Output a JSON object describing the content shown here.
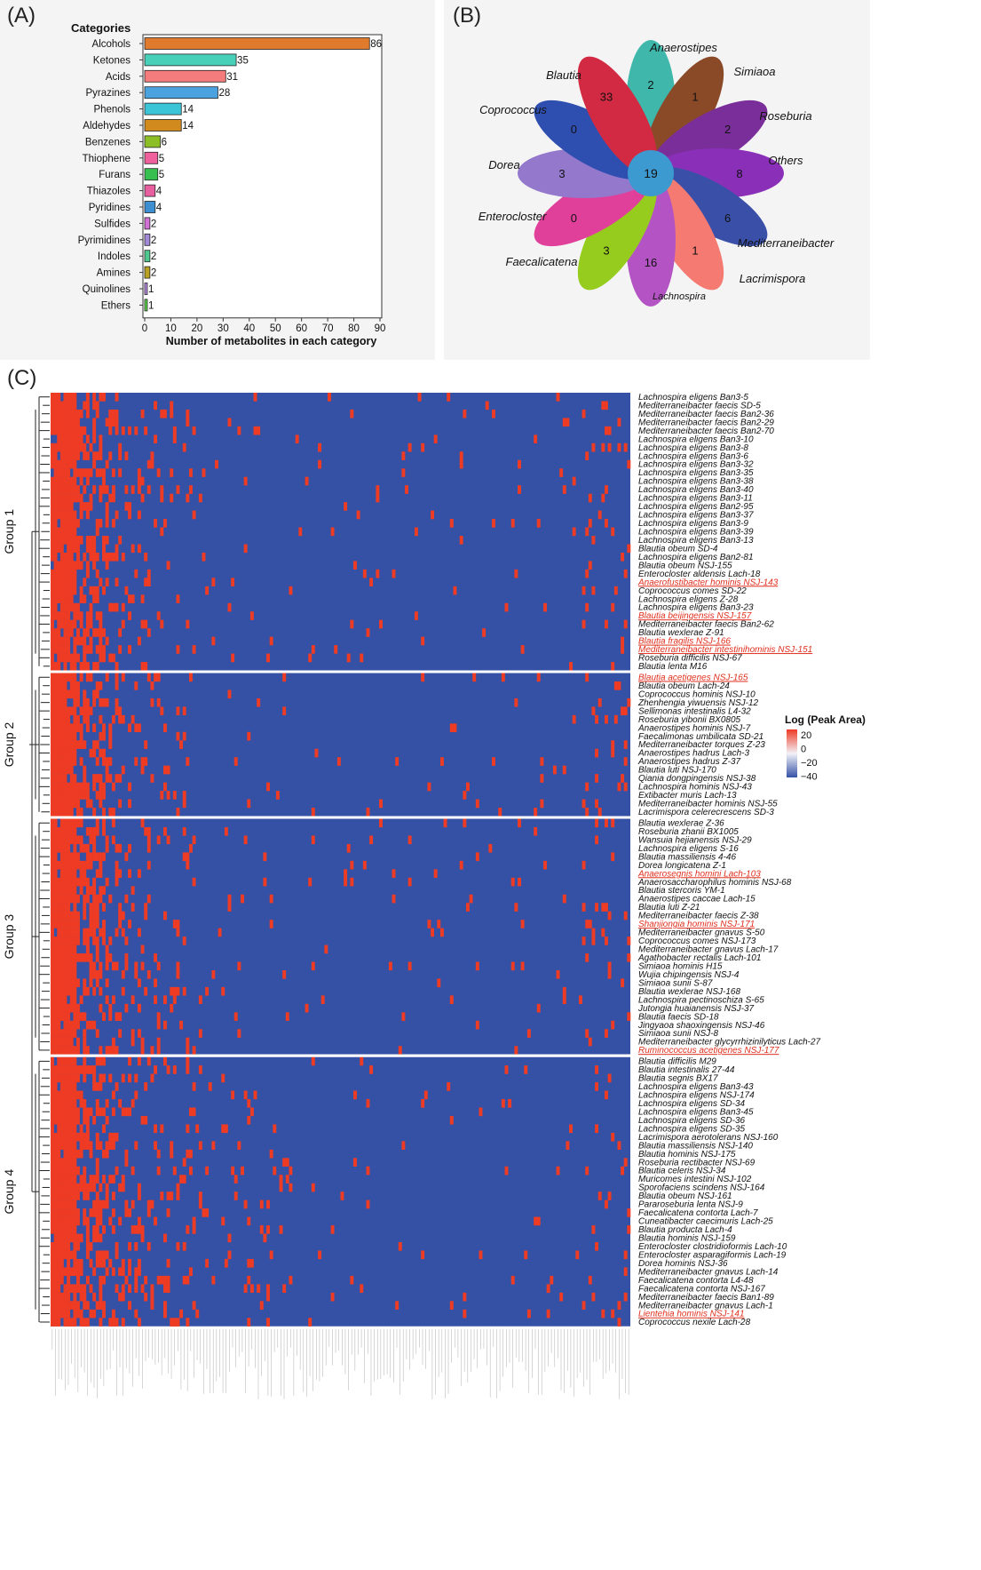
{
  "panel_labels": {
    "a": "(A)",
    "b": "(B)",
    "c": "(C)"
  },
  "chart_data": [
    {
      "type": "bar",
      "orientation": "horizontal",
      "legend_title": "Categories",
      "xlabel": "Number of metabolites in each category",
      "xlim": [
        0,
        90
      ],
      "xticks": [
        0,
        10,
        20,
        30,
        40,
        50,
        60,
        70,
        80,
        90
      ],
      "categories": [
        "Alcohols",
        "Ketones",
        "Acids",
        "Pyrazines",
        "Phenols",
        "Aldehydes",
        "Benzenes",
        "Thiophene",
        "Furans",
        "Thiazoles",
        "Pyridines",
        "Sulfides",
        "Pyrimidines",
        "Indoles",
        "Amines",
        "Quinolines",
        "Ethers"
      ],
      "values": [
        86,
        35,
        31,
        28,
        14,
        14,
        6,
        5,
        5,
        4,
        4,
        2,
        2,
        2,
        2,
        1,
        1
      ],
      "colors": [
        "#e07b2e",
        "#48d1b8",
        "#f47c7c",
        "#4aa3df",
        "#3cc5d6",
        "#d08a1e",
        "#8cbf26",
        "#f0609c",
        "#37c04f",
        "#e85fa0",
        "#3d8fd1",
        "#d271d6",
        "#a38ad9",
        "#4fc98f",
        "#b8a022",
        "#b68ae0",
        "#5bd34a"
      ]
    },
    {
      "type": "flower",
      "center_value": 19,
      "petals": [
        {
          "label": "Anaerostipes",
          "value": 2,
          "color": "#3fb8ab"
        },
        {
          "label": "Simiaoa",
          "value": 1,
          "color": "#8a4a28"
        },
        {
          "label": "Roseburia",
          "value": 2,
          "color": "#7a2e9a"
        },
        {
          "label": "Others",
          "value": 8,
          "color": "#8a30b8"
        },
        {
          "label": "Mediterraneibacter",
          "value": 6,
          "color": "#3a50a8"
        },
        {
          "label": "Lacrimispora",
          "value": 1,
          "color": "#f47a72"
        },
        {
          "label": "Lachnospira",
          "value": 16,
          "color": "#b454c4"
        },
        {
          "label": "Faecalicatena",
          "value": 3,
          "color": "#96cc1e"
        },
        {
          "label": "Enterocloster",
          "value": 0,
          "color": "#e0409a"
        },
        {
          "label": "Dorea",
          "value": 3,
          "color": "#9478cc"
        },
        {
          "label": "Coprococcus",
          "value": 0,
          "color": "#2f4fb0"
        },
        {
          "label": "Blautia",
          "value": 33,
          "color": "#d22a42"
        }
      ],
      "center_color": "#3d9ad1"
    },
    {
      "type": "heatmap",
      "legend_title": "Log (Peak Area)",
      "legend_ticks": [
        "20",
        "0",
        "−20",
        "−40"
      ],
      "colors": {
        "low": "#3451a6",
        "high": "#ee3b24"
      },
      "groups": [
        {
          "name": "Group 1",
          "rows": [
            {
              "label": "Lachnospira eligens Ban3-5",
              "highlight": false
            },
            {
              "label": "Mediterraneibacter faecis SD-5",
              "highlight": false
            },
            {
              "label": "Mediterraneibacter faecis Ban2-36",
              "highlight": false
            },
            {
              "label": "Mediterraneibacter faecis Ban2-29",
              "highlight": false
            },
            {
              "label": "Mediterraneibacter faecis Ban2-70",
              "highlight": false
            },
            {
              "label": "Lachnospira eligens Ban3-10",
              "highlight": false
            },
            {
              "label": "Lachnospira eligens Ban3-8",
              "highlight": false
            },
            {
              "label": "Lachnospira eligens Ban3-6",
              "highlight": false
            },
            {
              "label": "Lachnospira eligens Ban3-32",
              "highlight": false
            },
            {
              "label": "Lachnospira eligens Ban3-35",
              "highlight": false
            },
            {
              "label": "Lachnospira eligens Ban3-38",
              "highlight": false
            },
            {
              "label": "Lachnospira eligens Ban3-40",
              "highlight": false
            },
            {
              "label": "Lachnospira eligens Ban3-11",
              "highlight": false
            },
            {
              "label": "Lachnospira eligens Ban2-95",
              "highlight": false
            },
            {
              "label": "Lachnospira eligens Ban3-37",
              "highlight": false
            },
            {
              "label": "Lachnospira eligens Ban3-9",
              "highlight": false
            },
            {
              "label": "Lachnospira eligens Ban3-39",
              "highlight": false
            },
            {
              "label": "Lachnospira eligens Ban3-13",
              "highlight": false
            },
            {
              "label": "Blautia obeum SD-4",
              "highlight": false
            },
            {
              "label": "Lachnospira eligens Ban2-81",
              "highlight": false
            },
            {
              "label": "Blautia obeum NSJ-155",
              "highlight": false
            },
            {
              "label": "Enterocloster aldensis Lach-18",
              "highlight": false
            },
            {
              "label": "Anaerofustibacter hominis NSJ-143",
              "highlight": true
            },
            {
              "label": "Coprococcus comes SD-22",
              "highlight": false
            },
            {
              "label": "Lachnospira eligens Z-28",
              "highlight": false
            },
            {
              "label": "Lachnospira eligens Ban3-23",
              "highlight": false
            },
            {
              "label": "Blautia beijingensis NSJ-157",
              "highlight": true
            },
            {
              "label": "Mediterraneibacter faecis Ban2-62",
              "highlight": false
            },
            {
              "label": "Blautia wexlerae Z-91",
              "highlight": false
            },
            {
              "label": "Blautia fragilis NSJ-166",
              "highlight": true
            },
            {
              "label": "Mediterraneibacter intestinihominis NSJ-151",
              "highlight": true
            },
            {
              "label": "Roseburia difficilis NSJ-67",
              "highlight": false
            },
            {
              "label": "Blautia lenta M16",
              "highlight": false
            }
          ]
        },
        {
          "name": "Group 2",
          "rows": [
            {
              "label": "Blautia acetigenes NSJ-165",
              "highlight": true
            },
            {
              "label": "Blautia obeum Lach-24",
              "highlight": false
            },
            {
              "label": "Coprococcus hominis NSJ-10",
              "highlight": false
            },
            {
              "label": "Zhenhengia yiwuensis NSJ-12",
              "highlight": false
            },
            {
              "label": "Sellimonas intestinalis L4-32",
              "highlight": false
            },
            {
              "label": "Roseburia yibonii BX0805",
              "highlight": false
            },
            {
              "label": "Anaerostipes hominis NSJ-7",
              "highlight": false
            },
            {
              "label": "Faecalimonas umbilicata SD-21",
              "highlight": false
            },
            {
              "label": "Mediterraneibacter torques Z-23",
              "highlight": false
            },
            {
              "label": "Anaerostipes hadrus Lach-3",
              "highlight": false
            },
            {
              "label": "Anaerostipes hadrus Z-37",
              "highlight": false
            },
            {
              "label": "Blautia luti NSJ-170",
              "highlight": false
            },
            {
              "label": "Qiania dongpingensis NSJ-38",
              "highlight": false
            },
            {
              "label": "Lachnospira hominis NSJ-43",
              "highlight": false
            },
            {
              "label": "Extibacter muris Lach-13",
              "highlight": false
            },
            {
              "label": "Mediterraneibacter hominis NSJ-55",
              "highlight": false
            },
            {
              "label": "Lacrimispora celerecrescens SD-3",
              "highlight": false
            }
          ]
        },
        {
          "name": "Group 3",
          "rows": [
            {
              "label": "Blautia wexlerae Z-36",
              "highlight": false
            },
            {
              "label": "Roseburia zhanii BX1005",
              "highlight": false
            },
            {
              "label": "Wansuia hejianensis NSJ-29",
              "highlight": false
            },
            {
              "label": "Lachnospira eligens S-16",
              "highlight": false
            },
            {
              "label": "Blautia massiliensis 4-46",
              "highlight": false
            },
            {
              "label": "Dorea longicatena Z-1",
              "highlight": false
            },
            {
              "label": "Anaerosegnis homini Lach-103",
              "highlight": true
            },
            {
              "label": "Anaerosaccharophilus hominis NSJ-68",
              "highlight": false
            },
            {
              "label": "Blautia stercoris YM-1",
              "highlight": false
            },
            {
              "label": "Anaerostipes caccae Lach-15",
              "highlight": false
            },
            {
              "label": "Blautia luti Z-21",
              "highlight": false
            },
            {
              "label": "Mediterraneibacter faecis Z-38",
              "highlight": false
            },
            {
              "label": "Shanjiongia hominis NSJ-171",
              "highlight": true
            },
            {
              "label": "Mediterraneibacter gnavus S-50",
              "highlight": false
            },
            {
              "label": "Coprococcus comes NSJ-173",
              "highlight": false
            },
            {
              "label": "Mediterraneibacter gnavus Lach-17",
              "highlight": false
            },
            {
              "label": "Agathobacter rectalis Lach-101",
              "highlight": false
            },
            {
              "label": "Simiaoa hominis H15",
              "highlight": false
            },
            {
              "label": "Wujia chipingensis NSJ-4",
              "highlight": false
            },
            {
              "label": "Simiaoa sunii S-87",
              "highlight": false
            },
            {
              "label": "Blautia wexlerae NSJ-168",
              "highlight": false
            },
            {
              "label": "Lachnospira pectinoschiza S-65",
              "highlight": false
            },
            {
              "label": "Jutongia huaianensis NSJ-37",
              "highlight": false
            },
            {
              "label": "Blautia faecis SD-18",
              "highlight": false
            },
            {
              "label": "Jingyaoa shaoxingensis NSJ-46",
              "highlight": false
            },
            {
              "label": "Simiaoa sunii NSJ-8",
              "highlight": false
            },
            {
              "label": "Mediterraneibacter glycyrrhizinilyticus Lach-27",
              "highlight": false
            },
            {
              "label": "Ruminococcus acetigenes NSJ-177",
              "highlight": true
            }
          ]
        },
        {
          "name": "Group 4",
          "rows": [
            {
              "label": "Blautia difficilis M29",
              "highlight": false
            },
            {
              "label": "Blautia intestinalis 27-44",
              "highlight": false
            },
            {
              "label": "Blautia segnis BX17",
              "highlight": false
            },
            {
              "label": "Lachnospira eligens Ban3-43",
              "highlight": false
            },
            {
              "label": "Lachnospira eligens NSJ-174",
              "highlight": false
            },
            {
              "label": "Lachnospira eligens SD-34",
              "highlight": false
            },
            {
              "label": "Lachnospira eligens Ban3-45",
              "highlight": false
            },
            {
              "label": "Lachnospira eligens SD-36",
              "highlight": false
            },
            {
              "label": "Lachnospira eligens SD-35",
              "highlight": false
            },
            {
              "label": "Lacrimispora aerotolerans NSJ-160",
              "highlight": false
            },
            {
              "label": "Blautia massiliensis NSJ-140",
              "highlight": false
            },
            {
              "label": "Blautia hominis NSJ-175",
              "highlight": false
            },
            {
              "label": "Roseburia rectibacter NSJ-69",
              "highlight": false
            },
            {
              "label": "Blautia celeris NSJ-34",
              "highlight": false
            },
            {
              "label": "Muricomes intestini NSJ-102",
              "highlight": false
            },
            {
              "label": "Sporofaciens scindens NSJ-164",
              "highlight": false
            },
            {
              "label": "Blautia obeum NSJ-161",
              "highlight": false
            },
            {
              "label": "Pararoseburia lenta NSJ-9",
              "highlight": false
            },
            {
              "label": "Faecalicatena contorta Lach-7",
              "highlight": false
            },
            {
              "label": "Cuneatibacter caecimuris Lach-25",
              "highlight": false
            },
            {
              "label": "Blautia producta Lach-4",
              "highlight": false
            },
            {
              "label": "Blautia hominis NSJ-159",
              "highlight": false
            },
            {
              "label": "Enterocloster clostridioformis Lach-10",
              "highlight": false
            },
            {
              "label": "Enterocloster asparagiformis Lach-19",
              "highlight": false
            },
            {
              "label": "Dorea hominis NSJ-36",
              "highlight": false
            },
            {
              "label": "Mediterraneibacter gnavus Lach-14",
              "highlight": false
            },
            {
              "label": "Faecalicatena contorta L4-48",
              "highlight": false
            },
            {
              "label": "Faecalicatena contorta NSJ-167",
              "highlight": false
            },
            {
              "label": "Mediterraneibacter faecis Ban1-89",
              "highlight": false
            },
            {
              "label": "Mediterraneibacter gnavus Lach-1",
              "highlight": false
            },
            {
              "label": "Lientehia hominis NSJ-141",
              "highlight": true
            },
            {
              "label": "Coprococcus nexile Lach-28",
              "highlight": false
            }
          ]
        }
      ]
    }
  ]
}
